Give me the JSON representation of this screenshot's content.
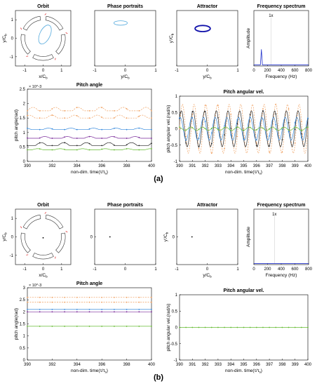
{
  "figure_labels": [
    "(a)",
    "(b)"
  ],
  "colors": {
    "axis": "#000000",
    "orbit": "#55aadd",
    "attractor": "#1111aa",
    "spectrum": "#2233cc",
    "pad_red": "#dd3333",
    "pitch_orange": "#f0a060",
    "pitch_blue": "#3388dd",
    "pitch_purple": "#7a2a9a",
    "pitch_green": "#66bb33",
    "pitch_black": "#222222"
  },
  "chart_data": [
    {
      "panel": "a",
      "type": "scatter",
      "title": "Orbit",
      "xlabel": "x/C_b",
      "ylabel": "y/C_b",
      "xlim": [
        -1.5,
        1.5
      ],
      "ylim": [
        -1.5,
        1.5
      ],
      "x_ticks": [
        "-1",
        "0",
        "1"
      ],
      "y_ticks": [
        "1",
        "0",
        "-1"
      ],
      "pads": 5,
      "orbit_ellipse": {
        "cx": 0.1,
        "cy": 0.2,
        "rx": 0.28,
        "ry": 0.55,
        "rotation_deg": 25
      }
    },
    {
      "panel": "a",
      "type": "scatter",
      "title": "Phase portraits",
      "xlabel": "y/C_b",
      "ylabel": "",
      "xlim": [
        -1,
        1
      ],
      "ylim": [
        -1,
        1
      ],
      "x_ticks": [
        "-1",
        "0",
        "1"
      ],
      "y_ticks": [],
      "ellipse": {
        "cx": -0.15,
        "cy": 0.55,
        "rx": 0.22,
        "ry": 0.08
      }
    },
    {
      "panel": "a",
      "type": "scatter",
      "title": "Attractor",
      "xlabel": "y/C_b",
      "ylabel": "y'/C_b",
      "xlim": [
        -1,
        1
      ],
      "ylim": [
        -1,
        1
      ],
      "x_ticks": [
        "-1",
        "0",
        "1"
      ],
      "y_ticks": [],
      "ellipse": {
        "cx": -0.15,
        "cy": 0.35,
        "rx": 0.25,
        "ry": 0.11
      }
    },
    {
      "panel": "a",
      "type": "line",
      "title": "Frequency spectrum",
      "xlabel": "Frequency (Hz)",
      "ylabel": "Amplitude",
      "xlim": [
        0,
        800
      ],
      "ylim": [
        0,
        1
      ],
      "x_ticks": [
        "0",
        "200",
        "400",
        "600",
        "800"
      ],
      "y_ticks": [],
      "annotation": "1x",
      "annotation_x": 250,
      "peak": {
        "x": 110,
        "y": 0.3
      }
    },
    {
      "panel": "a",
      "type": "line",
      "title": "Pitch angle",
      "xlabel": "non-dim. time(τ/τ_s)",
      "ylabel": "pitch angle(rad)",
      "exponent": "× 10^-3",
      "xlim": [
        390,
        400
      ],
      "ylim": [
        0,
        2.5
      ],
      "x_ticks": [
        "390",
        "392",
        "394",
        "396",
        "398",
        "400"
      ],
      "y_ticks": [
        "0",
        "0.5",
        "1",
        "1.5",
        "2",
        "2.5"
      ],
      "series": [
        {
          "color": "orange",
          "dash": true,
          "base": 1.75,
          "amp": 0.12
        },
        {
          "color": "orange",
          "dash": true,
          "base": 1.5,
          "amp": 0.1
        },
        {
          "color": "blue",
          "dash": false,
          "base": 1.1,
          "amp": 0.05
        },
        {
          "color": "purple",
          "dash": false,
          "base": 0.8,
          "amp": 0.06
        },
        {
          "color": "black",
          "dash": false,
          "base": 0.55,
          "amp": 0.1
        },
        {
          "color": "green",
          "dash": false,
          "base": 0.4,
          "amp": 0.04
        }
      ]
    },
    {
      "panel": "a",
      "type": "line",
      "title": "Pitch angular vel.",
      "xlabel": "non-dim. time(τ/τ_s)",
      "ylabel": "pitch angular vel.(rad/s)",
      "xlim": [
        390,
        400
      ],
      "ylim": [
        -1,
        1
      ],
      "x_ticks": [
        "390",
        "391",
        "392",
        "393",
        "394",
        "395",
        "396",
        "397",
        "398",
        "399",
        "400"
      ],
      "y_ticks": [
        "-1",
        "-0.5",
        "0",
        "0.5",
        "1"
      ],
      "series": [
        {
          "color": "orange",
          "dash": true,
          "amp": 0.75
        },
        {
          "color": "black",
          "dash": false,
          "amp": 0.55
        },
        {
          "color": "blue",
          "dash": false,
          "amp": 0.35
        },
        {
          "color": "green",
          "dash": false,
          "amp": 0.05
        }
      ]
    },
    {
      "panel": "b",
      "type": "scatter",
      "title": "Orbit",
      "xlabel": "x/C_b",
      "ylabel": "y/C_b",
      "xlim": [
        -1.5,
        1.5
      ],
      "ylim": [
        -1.5,
        1.5
      ],
      "x_ticks": [
        "-1",
        "0",
        "1"
      ],
      "y_ticks": [
        "1",
        "0",
        "-1"
      ],
      "pads": 5,
      "point": {
        "x": 0.0,
        "y": -0.05
      }
    },
    {
      "panel": "b",
      "type": "scatter",
      "title": "Phase portraits",
      "xlabel": "",
      "ylabel": "",
      "xlim": [
        -1,
        1
      ],
      "ylim": [
        -1,
        1
      ],
      "x_ticks": [
        "-1",
        "0",
        "1"
      ],
      "y_ticks": [
        "0"
      ],
      "point": {
        "x": -0.5,
        "y": 0.0
      }
    },
    {
      "panel": "b",
      "type": "scatter",
      "title": "Attractor",
      "xlabel": "y/C_b",
      "ylabel": "y'/C_b",
      "xlim": [
        -1,
        1
      ],
      "ylim": [
        -1,
        1
      ],
      "x_ticks": [
        "-1",
        "0",
        "1"
      ],
      "y_ticks": [
        "0"
      ],
      "point": {
        "x": -0.5,
        "y": 0.0
      }
    },
    {
      "panel": "b",
      "type": "line",
      "title": "Frequency spectrum",
      "xlabel": "Frequency (Hz)",
      "ylabel": "Amplitude",
      "xlim": [
        0,
        800
      ],
      "ylim": [
        0,
        1
      ],
      "x_ticks": [
        "0",
        "200",
        "400",
        "600",
        "800"
      ],
      "y_ticks": [],
      "annotation": "1x",
      "annotation_x": 300,
      "peak": null
    },
    {
      "panel": "b",
      "type": "line",
      "title": "Pitch angle",
      "xlabel": "non-dim. time(τ/τ_s)",
      "ylabel": "pitch angle(rad)",
      "exponent": "× 10^-3",
      "xlim": [
        390,
        400
      ],
      "ylim": [
        0,
        3
      ],
      "x_ticks": [
        "390",
        "392",
        "394",
        "396",
        "398",
        "400"
      ],
      "y_ticks": [
        "0",
        "0.5",
        "1",
        "1.5",
        "2",
        "2.5",
        "3"
      ],
      "series": [
        {
          "color": "orange",
          "dash": true,
          "base": 2.6,
          "amp": 0
        },
        {
          "color": "orange",
          "dash": true,
          "base": 2.4,
          "amp": 0
        },
        {
          "color": "blue",
          "dash": false,
          "base": 2.1,
          "amp": 0
        },
        {
          "color": "purple",
          "dash": false,
          "base": 2.0,
          "amp": 0
        },
        {
          "color": "green",
          "dash": false,
          "base": 1.4,
          "amp": 0
        }
      ]
    },
    {
      "panel": "b",
      "type": "line",
      "title": "Pitch angular vel.",
      "xlabel": "non-dim. time(τ/τ_s)",
      "ylabel": "pitch angular vel.(rad/s)",
      "xlim": [
        390,
        400
      ],
      "ylim": [
        -1,
        1
      ],
      "x_ticks": [
        "390",
        "391",
        "392",
        "393",
        "394",
        "395",
        "396",
        "397",
        "398",
        "399",
        "400"
      ],
      "y_ticks": [
        "-1",
        "-0.5",
        "0",
        "0.5",
        "1"
      ],
      "series": [
        {
          "color": "green",
          "dash": false,
          "amp": 0
        }
      ]
    }
  ]
}
